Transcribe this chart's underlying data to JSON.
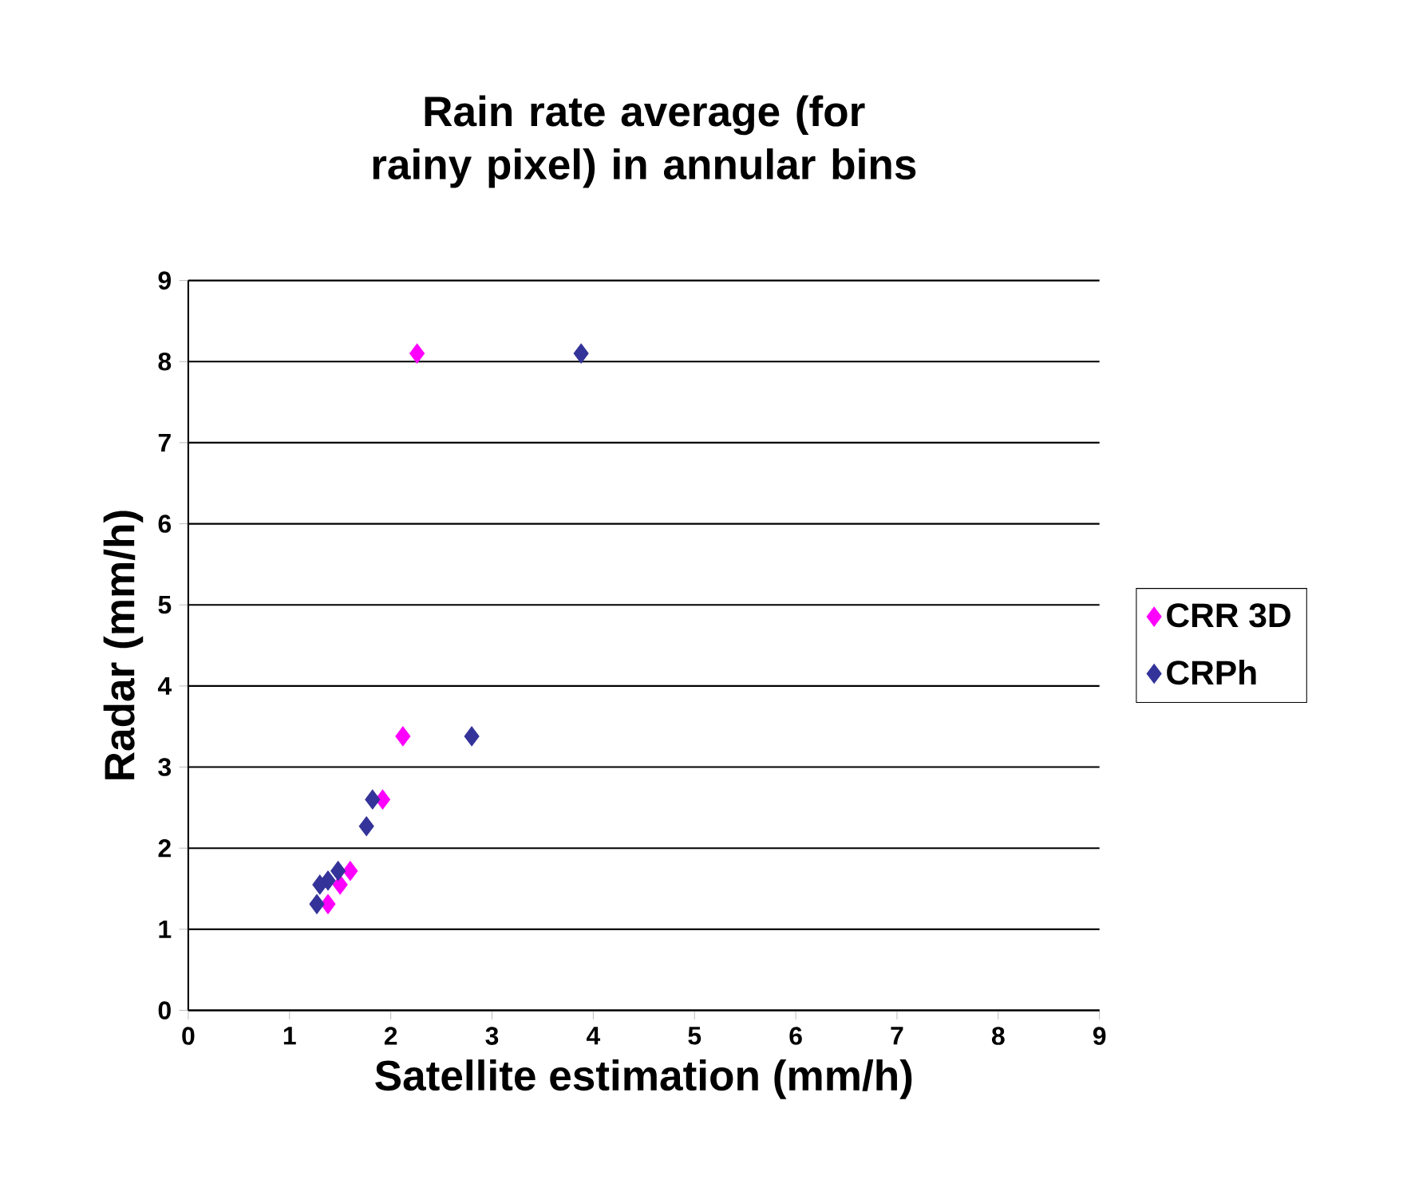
{
  "chart_data": {
    "type": "scatter",
    "title": "Rain rate average (for rainy pixel) in annular bins",
    "xlabel": "Satellite estimation (mm/h)",
    "ylabel": "Radar (mm/h)",
    "series": [
      {
        "name": "CRR 3D",
        "color": "#ff00ff",
        "x": [
          2.26,
          2.12,
          1.92,
          1.6,
          1.57,
          1.5,
          1.38
        ],
        "values": [
          8.1,
          3.38,
          2.6,
          1.72,
          null,
          1.55,
          1.31
        ]
      },
      {
        "name": "CRPh",
        "color": "#333399",
        "x": [
          3.88,
          2.8,
          1.82,
          1.76,
          1.48,
          1.38,
          1.3,
          1.27
        ],
        "values": [
          8.1,
          3.38,
          2.6,
          2.27,
          1.72,
          1.6,
          1.55,
          1.31
        ]
      }
    ],
    "xlim": [
      0,
      9
    ],
    "ylim": [
      0,
      9
    ],
    "xticks": [
      0,
      1,
      2,
      3,
      4,
      5,
      6,
      7,
      8,
      9
    ],
    "yticks": [
      0,
      1,
      2,
      3,
      4,
      5,
      6,
      7,
      8,
      9
    ],
    "grid": "y",
    "legend": "right",
    "marker": "diamond"
  }
}
